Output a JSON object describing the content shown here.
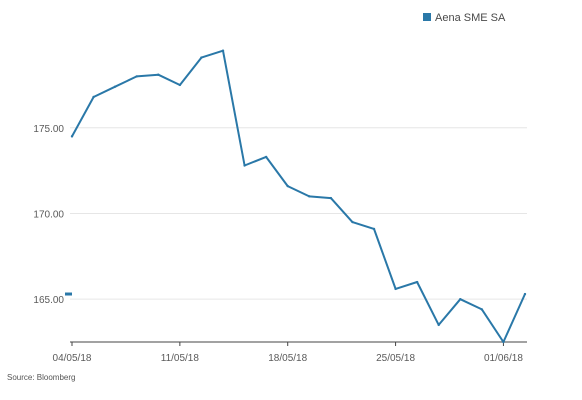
{
  "chart_data": {
    "type": "line",
    "series": [
      {
        "name": "Aena SME SA",
        "x": [
          "04/05/18",
          "07/05/18",
          "08/05/18",
          "09/05/18",
          "10/05/18",
          "11/05/18",
          "14/05/18",
          "15/05/18",
          "16/05/18",
          "17/05/18",
          "18/05/18",
          "21/05/18",
          "22/05/18",
          "23/05/18",
          "24/05/18",
          "25/05/18",
          "28/05/18",
          "29/05/18",
          "30/05/18",
          "31/05/18",
          "01/06/18",
          "04/06/18"
        ],
        "values": [
          174.5,
          176.8,
          177.4,
          178.0,
          178.1,
          177.5,
          179.1,
          179.5,
          172.8,
          173.3,
          171.6,
          171.0,
          170.9,
          169.5,
          169.1,
          165.6,
          166.0,
          163.5,
          165.0,
          164.4,
          162.5,
          165.3
        ]
      }
    ],
    "last_value_marker": 165.3,
    "x_ticks": [
      "04/05/18",
      "11/05/18",
      "18/05/18",
      "25/05/18",
      "01/06/18"
    ],
    "y_ticks": [
      "165.00",
      "170.00",
      "175.00"
    ],
    "y_tick_values": [
      165,
      170,
      175
    ],
    "ylim": [
      162.5,
      181.0
    ],
    "grid": true,
    "legend_position": "top-right",
    "source": "Source: Bloomberg",
    "colors": {
      "line": "#2a78a8",
      "grid": "#e6e6e6",
      "axis": "#444444",
      "text": "#5a5a5a"
    }
  }
}
